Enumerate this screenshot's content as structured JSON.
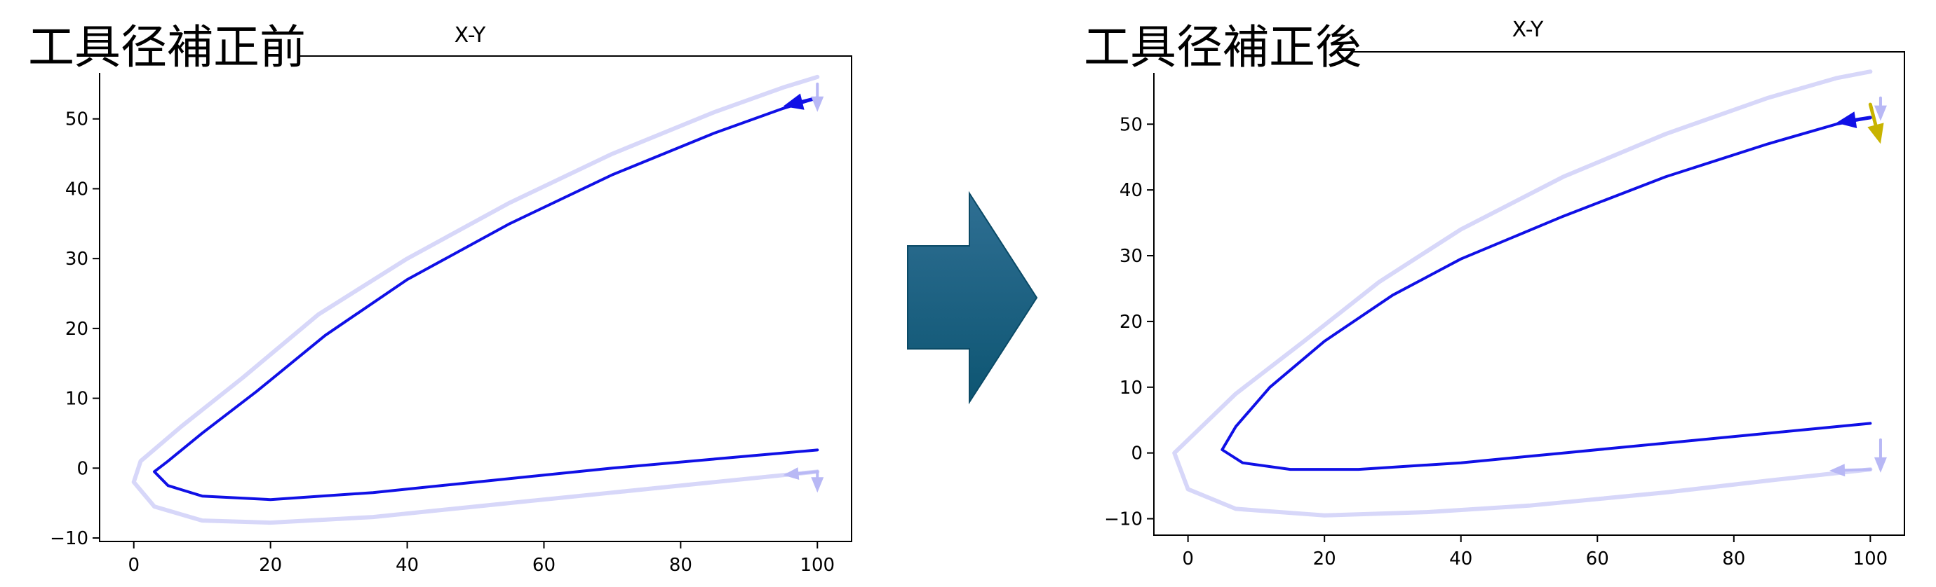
{
  "left_caption": "工具径補正前",
  "right_caption": "工具径補正後",
  "colors": {
    "path": "#1010e6",
    "offset_path": "#c9c9f7",
    "offset_arrow": "#b8b8f5",
    "start_arrow": "#c8b400",
    "transition_arrow_top": "#2f6f93",
    "transition_arrow_bottom": "#0d5572"
  },
  "chart_data": [
    {
      "type": "line",
      "title": "X-Y",
      "xlim": [
        -5,
        105
      ],
      "ylim": [
        -10.5,
        59
      ],
      "xticks": [
        0,
        20,
        40,
        60,
        80,
        100
      ],
      "yticks": [
        -10,
        0,
        10,
        20,
        30,
        40,
        50
      ],
      "grid": false,
      "series": [
        {
          "role": "path",
          "x": [
            100,
            95,
            85,
            70,
            55,
            40,
            28,
            18,
            10,
            5,
            3,
            5,
            10,
            20,
            35,
            50,
            70,
            85,
            100
          ],
          "y": [
            53,
            51.5,
            48,
            42,
            35,
            27,
            19,
            11,
            5,
            1,
            -0.5,
            -2.5,
            -4,
            -4.5,
            -3.5,
            -2,
            0,
            1.3,
            2.6
          ]
        },
        {
          "role": "offset_path",
          "x": [
            100,
            95,
            85,
            70,
            55,
            40,
            27,
            16,
            7,
            1,
            0,
            3,
            10,
            20,
            35,
            50,
            70,
            85,
            100
          ],
          "y": [
            56,
            54.5,
            51,
            45,
            38,
            30,
            22,
            13,
            6,
            1,
            -2,
            -5.5,
            -7.5,
            -7.8,
            -7,
            -5.5,
            -3.5,
            -2,
            -0.5
          ]
        }
      ],
      "arrows": [
        {
          "role": "path",
          "x": [
            100,
            95
          ],
          "y": [
            53,
            51.8
          ]
        },
        {
          "role": "offset_arrow",
          "x": [
            100,
            100
          ],
          "y": [
            55,
            51
          ]
        },
        {
          "role": "offset_arrow",
          "x": [
            100,
            95
          ],
          "y": [
            -0.5,
            -1
          ]
        },
        {
          "role": "offset_arrow",
          "x": [
            100,
            100
          ],
          "y": [
            -0.5,
            -3.5
          ]
        }
      ]
    },
    {
      "type": "line",
      "title": "X-Y",
      "xlim": [
        -5,
        105
      ],
      "ylim": [
        -12.5,
        61
      ],
      "xticks": [
        0,
        20,
        40,
        60,
        80,
        100
      ],
      "yticks": [
        -10,
        0,
        10,
        20,
        30,
        40,
        50
      ],
      "grid": false,
      "series": [
        {
          "role": "path",
          "x": [
            100,
            95,
            85,
            70,
            55,
            40,
            30,
            20,
            12,
            7,
            5,
            8,
            15,
            25,
            40,
            55,
            70,
            85,
            100
          ],
          "y": [
            51,
            50,
            47,
            42,
            36,
            29.5,
            24,
            17,
            10,
            4,
            0.5,
            -1.5,
            -2.5,
            -2.5,
            -1.5,
            0,
            1.5,
            3,
            4.5
          ]
        },
        {
          "role": "offset_path",
          "x": [
            100,
            95,
            85,
            70,
            55,
            40,
            28,
            17,
            7,
            1,
            -2,
            0,
            7,
            20,
            35,
            50,
            70,
            85,
            100
          ],
          "y": [
            58,
            57,
            54,
            48.5,
            42,
            34,
            26,
            17,
            9,
            3,
            0,
            -5.5,
            -8.5,
            -9.5,
            -9,
            -8,
            -6,
            -4.2,
            -2.5
          ]
        }
      ],
      "arrows": [
        {
          "role": "path",
          "x": [
            100,
            95
          ],
          "y": [
            51,
            50.2
          ]
        },
        {
          "role": "start_arrow",
          "x": [
            100,
            101.5
          ],
          "y": [
            53,
            47
          ]
        },
        {
          "role": "offset_arrow",
          "x": [
            101.5,
            101.5
          ],
          "y": [
            54,
            50.5
          ]
        },
        {
          "role": "offset_arrow",
          "x": [
            101.5,
            101.5
          ],
          "y": [
            2,
            -3
          ]
        },
        {
          "role": "offset_arrow",
          "x": [
            100,
            94
          ],
          "y": [
            -2.5,
            -2.7
          ]
        }
      ]
    }
  ]
}
